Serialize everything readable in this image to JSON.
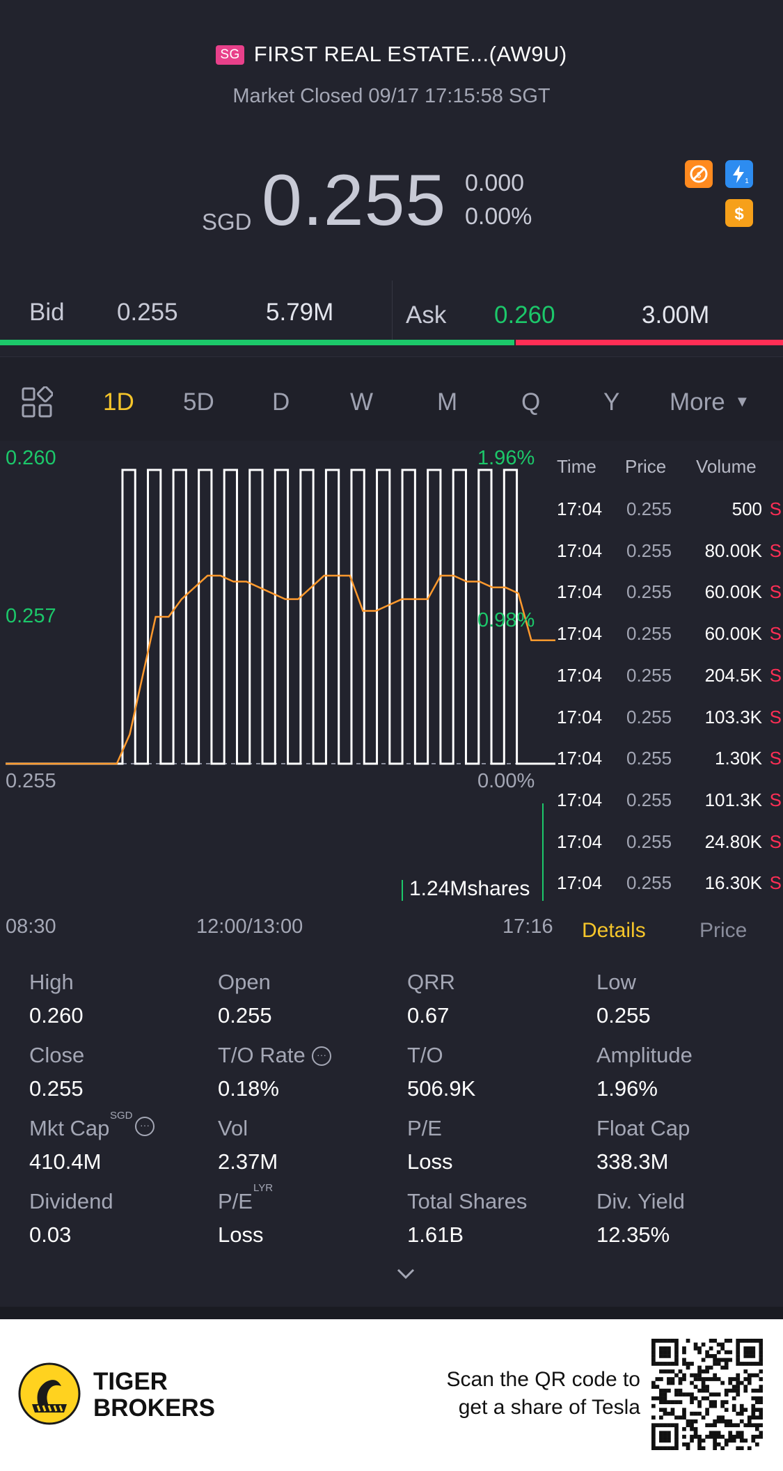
{
  "header": {
    "market_badge": "SG",
    "title": "FIRST REAL ESTATE...(AW9U)",
    "status": "Market Closed 09/17 17:15:58 SGT",
    "currency": "SGD",
    "price": "0.255",
    "change": "0.000",
    "change_pct": "0.00%"
  },
  "badges": [
    {
      "icon": "no-short-icon",
      "color": "#ff8a1f"
    },
    {
      "icon": "flash-1-icon",
      "color": "#2d8cf0"
    },
    {
      "icon": "dollar-icon",
      "color": "#f6a01a"
    }
  ],
  "bid_ask": {
    "bid_label": "Bid",
    "bid_price": "0.255",
    "bid_size": "5.79M",
    "ask_label": "Ask",
    "ask_price": "0.260",
    "ask_size": "3.00M",
    "bid_ratio": 0.657,
    "colors": {
      "bid": "#1cc86a",
      "ask": "#ff2e55"
    }
  },
  "tabs": {
    "labels": [
      "1D",
      "5D",
      "D",
      "W",
      "M",
      "Q",
      "Y",
      "More"
    ],
    "active": "1D"
  },
  "chart": {
    "y_top": "0.260",
    "y_mid": "0.257",
    "y_bottom": "0.255",
    "pct_top": "1.96%",
    "pct_mid": "0.98%",
    "pct_bottom": "0.00%",
    "volume_label": "1.24Mshares",
    "x_labels": [
      "08:30",
      "12:00/13:00",
      "17:16"
    ]
  },
  "chart_data": {
    "type": "line",
    "title": "",
    "xlabel": "",
    "ylabel": "",
    "ylim": [
      0.255,
      0.26
    ],
    "x_ticks": [
      "08:30",
      "12:00/13:00",
      "17:16"
    ],
    "series": [
      {
        "values": [
          0.255,
          0.255,
          0.255,
          0.255,
          0.2555,
          0.2565,
          0.2575,
          0.2575,
          0.2578,
          0.258,
          0.2582,
          0.2582,
          0.2581,
          0.2581,
          0.258,
          0.2579,
          0.2578,
          0.2578,
          0.258,
          0.2582,
          0.2582,
          0.2582,
          0.2576,
          0.2576,
          0.2577,
          0.2578,
          0.2578,
          0.2578,
          0.2582,
          0.2582,
          0.2581,
          0.2581,
          0.258,
          0.258,
          0.2579,
          0.2571,
          0.2571
        ]
      },
      {
        "values": [
          0.255,
          0.255,
          0.255,
          0.255,
          0.26,
          0.255,
          0.26,
          0.255,
          0.26,
          0.255,
          0.26,
          0.255,
          0.26,
          0.255,
          0.26,
          0.255,
          0.26,
          0.255,
          0.26,
          0.255,
          0.26,
          0.255,
          0.26,
          0.255,
          0.26,
          0.255,
          0.26,
          0.255,
          0.26,
          0.255,
          0.26,
          0.255,
          0.26,
          0.255,
          0.26,
          0.255,
          0.255
        ]
      }
    ],
    "grid": false
  },
  "ticks": {
    "headers": {
      "time": "Time",
      "price": "Price",
      "volume": "Volume"
    },
    "rows": [
      {
        "time": "17:04",
        "price": "0.255",
        "volume": "500",
        "flag": "S"
      },
      {
        "time": "17:04",
        "price": "0.255",
        "volume": "80.00K",
        "flag": "S"
      },
      {
        "time": "17:04",
        "price": "0.255",
        "volume": "60.00K",
        "flag": "S"
      },
      {
        "time": "17:04",
        "price": "0.255",
        "volume": "60.00K",
        "flag": "S"
      },
      {
        "time": "17:04",
        "price": "0.255",
        "volume": "204.5K",
        "flag": "S"
      },
      {
        "time": "17:04",
        "price": "0.255",
        "volume": "103.3K",
        "flag": "S"
      },
      {
        "time": "17:04",
        "price": "0.255",
        "volume": "1.30K",
        "flag": "S"
      },
      {
        "time": "17:04",
        "price": "0.255",
        "volume": "101.3K",
        "flag": "S"
      },
      {
        "time": "17:04",
        "price": "0.255",
        "volume": "24.80K",
        "flag": "S"
      },
      {
        "time": "17:04",
        "price": "0.255",
        "volume": "16.30K",
        "flag": "S"
      }
    ]
  },
  "details_tabs": {
    "details": "Details",
    "price": "Price"
  },
  "stats": [
    {
      "label": "High",
      "value": "0.260"
    },
    {
      "label": "Open",
      "value": "0.255"
    },
    {
      "label": "QRR",
      "value": "0.67"
    },
    {
      "label": "Low",
      "value": "0.255"
    },
    {
      "label": "Close",
      "value": "0.255"
    },
    {
      "label": "T/O Rate",
      "value": "0.18%"
    },
    {
      "label": "T/O",
      "value": "506.9K"
    },
    {
      "label": "Amplitude",
      "value": "1.96%"
    },
    {
      "label": "Mkt Cap",
      "value": "410.4M"
    },
    {
      "label": "Vol",
      "value": "2.37M"
    },
    {
      "label": "P/E",
      "value": "Loss"
    },
    {
      "label": "Float Cap",
      "value": "338.3M"
    },
    {
      "label": "Dividend",
      "value": "0.03"
    },
    {
      "label": "P/E",
      "value": "Loss"
    },
    {
      "label": "Total Shares",
      "value": "1.61B"
    },
    {
      "label": "Div. Yield",
      "value": "12.35%"
    }
  ],
  "stat_sups": {
    "mkt_cap": "SGD",
    "pe_lyr": "LYR"
  },
  "footer": {
    "brand_line1": "TIGER",
    "brand_line2": "BROKERS",
    "cta_line1": "Scan the QR code to",
    "cta_line2": "get a share of Tesla"
  }
}
